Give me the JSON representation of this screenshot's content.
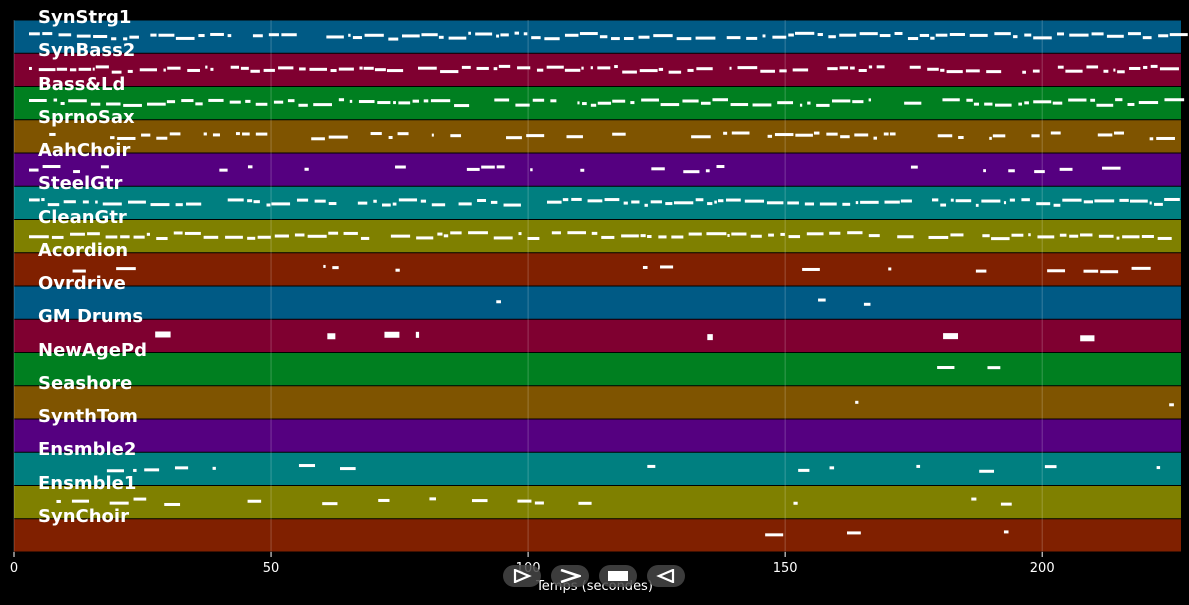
{
  "tracks": [
    {
      "name": "SynStrg1",
      "color": "#005a85"
    },
    {
      "name": "SynBass2",
      "color": "#7f0030"
    },
    {
      "name": "Bass&Ld",
      "color": "#007f20"
    },
    {
      "name": "SprnoSax",
      "color": "#7f5400"
    },
    {
      "name": "AahChoir",
      "color": "#550080"
    },
    {
      "name": "SteelGtr",
      "color": "#007f80"
    },
    {
      "name": "CleanGtr",
      "color": "#7f8000"
    },
    {
      "name": "Acordion",
      "color": "#802000"
    },
    {
      "name": "Ovrdrive",
      "color": "#005a85"
    },
    {
      "name": "GM Drums",
      "color": "#7f0030"
    },
    {
      "name": "NewAgePd",
      "color": "#007f20"
    },
    {
      "name": "Seashore",
      "color": "#7f5400"
    },
    {
      "name": "SynthTom",
      "color": "#550080"
    },
    {
      "name": "Ensmble2",
      "color": "#007f80"
    },
    {
      "name": "Ensmble1",
      "color": "#7f8000"
    },
    {
      "name": "SynChoir",
      "color": "#802000"
    }
  ],
  "axis": {
    "xlabel": "Temps (secondes)",
    "xlim": [
      0,
      227
    ],
    "ticks": [
      0,
      50,
      100,
      150,
      200
    ]
  },
  "note_color": "#ffffff",
  "controls": [
    {
      "name": "play-icon"
    },
    {
      "name": "forward-icon"
    },
    {
      "name": "stop-icon"
    },
    {
      "name": "rewind-icon"
    }
  ]
}
